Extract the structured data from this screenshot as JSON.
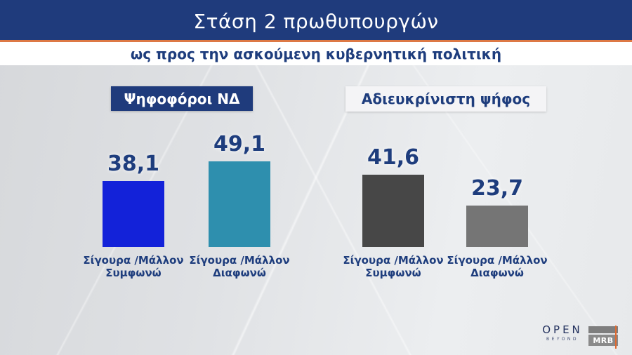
{
  "header": {
    "title": "Στάση 2 πρωθυπουργών",
    "subtitle": "ως προς την ασκούμενη κυβερνητική πολιτική",
    "bar_color": "#1f3b7c",
    "accent_color": "#dd7945",
    "text_color": "#1e3d7d"
  },
  "chart_data": {
    "type": "bar",
    "title": "Στάση 2 πρωθυπουργών ως προς την ασκούμενη κυβερνητική πολιτική",
    "value_range": [
      0,
      100
    ],
    "grid": false,
    "legend": false,
    "groups": [
      {
        "title": "Ψηφοφόροι ΝΔ",
        "bars": [
          {
            "label_line1": "Σίγουρα /Μάλλον",
            "label_line2": "Συμφωνώ",
            "value": 38.1,
            "display": "38,1",
            "color": "#1322d9"
          },
          {
            "label_line1": "Σίγουρα /Μάλλον",
            "label_line2": "Διαφωνώ",
            "value": 49.1,
            "display": "49,1",
            "color": "#2e8fae"
          }
        ]
      },
      {
        "title": "Αδιευκρίνιστη ψήφος",
        "bars": [
          {
            "label_line1": "Σίγουρα /Μάλλον",
            "label_line2": "Συμφωνώ",
            "value": 41.6,
            "display": "41,6",
            "color": "#474747"
          },
          {
            "label_line1": "Σίγουρα /Μάλλον",
            "label_line2": "Διαφωνώ",
            "value": 23.7,
            "display": "23,7",
            "color": "#757575"
          }
        ]
      }
    ]
  },
  "footer": {
    "open_logo": "OPEN",
    "open_sub": "BEYOND",
    "mrb_label": "MRB"
  }
}
